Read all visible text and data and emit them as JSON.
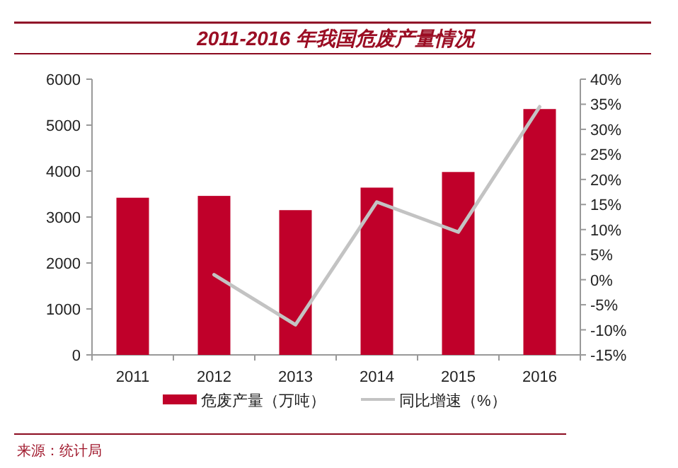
{
  "chart_data": {
    "type": "bar",
    "title": "2011-2016 年我国危废产量情况",
    "categories": [
      "2011",
      "2012",
      "2013",
      "2014",
      "2015",
      "2016"
    ],
    "series": [
      {
        "name": "危废产量（万吨）",
        "color": "#c0002a",
        "values": [
          3420,
          3460,
          3150,
          3640,
          3980,
          5350
        ]
      },
      {
        "name": "同比增速（%）",
        "type": "line",
        "axis": "y2",
        "color": "#c3c3c3",
        "values": [
          null,
          1,
          -9,
          15.5,
          9.5,
          34.5
        ]
      }
    ],
    "ylim": [
      0,
      6000
    ],
    "yticks": [
      0,
      1000,
      2000,
      3000,
      4000,
      5000,
      6000
    ],
    "y2lim": [
      -15,
      40
    ],
    "y2ticks": [
      {
        "value": -15,
        "label": "-15%"
      },
      {
        "value": -10,
        "label": "-10%"
      },
      {
        "value": -5,
        "label": "-5%"
      },
      {
        "value": 0,
        "label": "0%"
      },
      {
        "value": 5,
        "label": "5%"
      },
      {
        "value": 10,
        "label": "10%"
      },
      {
        "value": 15,
        "label": "15%"
      },
      {
        "value": 20,
        "label": "20%"
      },
      {
        "value": 25,
        "label": "25%"
      },
      {
        "value": 30,
        "label": "30%"
      },
      {
        "value": 35,
        "label": "35%"
      },
      {
        "value": 40,
        "label": "40%"
      }
    ],
    "legend": "bottom",
    "annotations": [
      "来源：统计局"
    ]
  }
}
